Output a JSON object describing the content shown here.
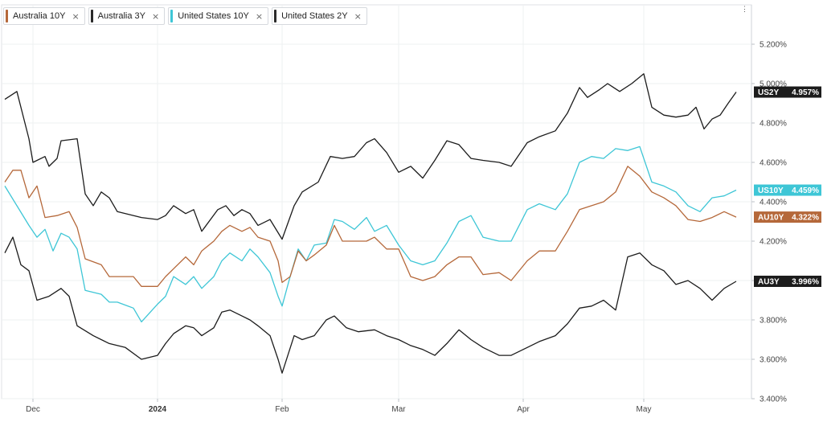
{
  "legend": [
    {
      "label": "Australia 10Y",
      "color": "#b5683a",
      "close": "×"
    },
    {
      "label": "Australia 3Y",
      "color": "#2a2a2a",
      "close": "×"
    },
    {
      "label": "United States 10Y",
      "color": "#3ec6d6",
      "close": "×"
    },
    {
      "label": "United States 2Y",
      "color": "#2a2a2a",
      "close": "×"
    }
  ],
  "chart_data": {
    "type": "line",
    "x_ticks": [
      "Dec",
      "2024",
      "Feb",
      "Mar",
      "Apr",
      "May"
    ],
    "y_ticks": [
      "5.200%",
      "5.000%",
      "4.800%",
      "4.600%",
      "4.400%",
      "4.200%",
      "4.000%",
      "3.800%",
      "3.600%",
      "3.400%"
    ],
    "ylim": [
      3.4,
      5.4
    ],
    "x_range": [
      "2023-11-24",
      "2024-05-24"
    ],
    "grid": true,
    "series": [
      {
        "name": "US2Y",
        "last": "4.957%",
        "color": "#1c1c1c",
        "tag_color": "#1c1c1c",
        "points": [
          [
            "2023-11-24",
            4.92
          ],
          [
            "2023-11-27",
            4.96
          ],
          [
            "2023-11-30",
            4.72
          ],
          [
            "2023-12-01",
            4.6
          ],
          [
            "2023-12-04",
            4.63
          ],
          [
            "2023-12-05",
            4.58
          ],
          [
            "2023-12-07",
            4.62
          ],
          [
            "2023-12-08",
            4.71
          ],
          [
            "2023-12-12",
            4.72
          ],
          [
            "2023-12-14",
            4.44
          ],
          [
            "2023-12-16",
            4.38
          ],
          [
            "2023-12-18",
            4.45
          ],
          [
            "2023-12-20",
            4.42
          ],
          [
            "2023-12-22",
            4.35
          ],
          [
            "2023-12-28",
            4.32
          ],
          [
            "2024-01-01",
            4.31
          ],
          [
            "2024-01-03",
            4.33
          ],
          [
            "2024-01-05",
            4.38
          ],
          [
            "2024-01-08",
            4.34
          ],
          [
            "2024-01-10",
            4.36
          ],
          [
            "2024-01-12",
            4.25
          ],
          [
            "2024-01-16",
            4.36
          ],
          [
            "2024-01-18",
            4.38
          ],
          [
            "2024-01-20",
            4.33
          ],
          [
            "2024-01-22",
            4.36
          ],
          [
            "2024-01-24",
            4.34
          ],
          [
            "2024-01-26",
            4.28
          ],
          [
            "2024-01-29",
            4.31
          ],
          [
            "2024-02-01",
            4.21
          ],
          [
            "2024-02-04",
            4.38
          ],
          [
            "2024-02-06",
            4.45
          ],
          [
            "2024-02-10",
            4.5
          ],
          [
            "2024-02-13",
            4.63
          ],
          [
            "2024-02-16",
            4.62
          ],
          [
            "2024-02-19",
            4.63
          ],
          [
            "2024-02-22",
            4.7
          ],
          [
            "2024-02-24",
            4.72
          ],
          [
            "2024-02-27",
            4.65
          ],
          [
            "2024-03-01",
            4.55
          ],
          [
            "2024-03-04",
            4.58
          ],
          [
            "2024-03-07",
            4.52
          ],
          [
            "2024-03-10",
            4.61
          ],
          [
            "2024-03-13",
            4.71
          ],
          [
            "2024-03-16",
            4.69
          ],
          [
            "2024-03-19",
            4.62
          ],
          [
            "2024-03-22",
            4.61
          ],
          [
            "2024-03-26",
            4.6
          ],
          [
            "2024-03-29",
            4.58
          ],
          [
            "2024-04-02",
            4.7
          ],
          [
            "2024-04-05",
            4.73
          ],
          [
            "2024-04-09",
            4.76
          ],
          [
            "2024-04-12",
            4.85
          ],
          [
            "2024-04-15",
            4.98
          ],
          [
            "2024-04-17",
            4.93
          ],
          [
            "2024-04-20",
            4.97
          ],
          [
            "2024-04-22",
            5.0
          ],
          [
            "2024-04-25",
            4.96
          ],
          [
            "2024-04-28",
            5.0
          ],
          [
            "2024-05-01",
            5.05
          ],
          [
            "2024-05-03",
            4.88
          ],
          [
            "2024-05-06",
            4.84
          ],
          [
            "2024-05-09",
            4.83
          ],
          [
            "2024-05-12",
            4.84
          ],
          [
            "2024-05-14",
            4.88
          ],
          [
            "2024-05-16",
            4.77
          ],
          [
            "2024-05-18",
            4.82
          ],
          [
            "2024-05-20",
            4.84
          ],
          [
            "2024-05-22",
            4.9
          ],
          [
            "2024-05-24",
            4.957
          ]
        ]
      },
      {
        "name": "US10Y",
        "last": "4.459%",
        "color": "#3ec6d6",
        "tag_color": "#3ec6d6",
        "points": [
          [
            "2023-11-24",
            4.48
          ],
          [
            "2023-11-27",
            4.38
          ],
          [
            "2023-11-30",
            4.28
          ],
          [
            "2023-12-02",
            4.22
          ],
          [
            "2023-12-04",
            4.26
          ],
          [
            "2023-12-06",
            4.15
          ],
          [
            "2023-12-08",
            4.24
          ],
          [
            "2023-12-10",
            4.22
          ],
          [
            "2023-12-12",
            4.16
          ],
          [
            "2023-12-14",
            3.95
          ],
          [
            "2023-12-18",
            3.93
          ],
          [
            "2023-12-20",
            3.89
          ],
          [
            "2023-12-22",
            3.89
          ],
          [
            "2023-12-26",
            3.86
          ],
          [
            "2023-12-28",
            3.79
          ],
          [
            "2024-01-01",
            3.88
          ],
          [
            "2024-01-03",
            3.92
          ],
          [
            "2024-01-05",
            4.02
          ],
          [
            "2024-01-08",
            3.98
          ],
          [
            "2024-01-10",
            4.02
          ],
          [
            "2024-01-12",
            3.96
          ],
          [
            "2024-01-15",
            4.02
          ],
          [
            "2024-01-17",
            4.1
          ],
          [
            "2024-01-19",
            4.14
          ],
          [
            "2024-01-22",
            4.1
          ],
          [
            "2024-01-24",
            4.16
          ],
          [
            "2024-01-26",
            4.12
          ],
          [
            "2024-01-29",
            4.04
          ],
          [
            "2024-01-31",
            3.92
          ],
          [
            "2024-02-01",
            3.87
          ],
          [
            "2024-02-03",
            4.02
          ],
          [
            "2024-02-05",
            4.16
          ],
          [
            "2024-02-07",
            4.1
          ],
          [
            "2024-02-09",
            4.18
          ],
          [
            "2024-02-12",
            4.19
          ],
          [
            "2024-02-14",
            4.31
          ],
          [
            "2024-02-16",
            4.3
          ],
          [
            "2024-02-19",
            4.26
          ],
          [
            "2024-02-22",
            4.32
          ],
          [
            "2024-02-24",
            4.25
          ],
          [
            "2024-02-27",
            4.28
          ],
          [
            "2024-03-01",
            4.18
          ],
          [
            "2024-03-04",
            4.1
          ],
          [
            "2024-03-07",
            4.08
          ],
          [
            "2024-03-10",
            4.1
          ],
          [
            "2024-03-13",
            4.19
          ],
          [
            "2024-03-16",
            4.3
          ],
          [
            "2024-03-19",
            4.33
          ],
          [
            "2024-03-22",
            4.22
          ],
          [
            "2024-03-26",
            4.2
          ],
          [
            "2024-03-29",
            4.2
          ],
          [
            "2024-04-02",
            4.36
          ],
          [
            "2024-04-05",
            4.39
          ],
          [
            "2024-04-09",
            4.36
          ],
          [
            "2024-04-12",
            4.44
          ],
          [
            "2024-04-15",
            4.6
          ],
          [
            "2024-04-18",
            4.63
          ],
          [
            "2024-04-21",
            4.62
          ],
          [
            "2024-04-24",
            4.67
          ],
          [
            "2024-04-27",
            4.66
          ],
          [
            "2024-04-30",
            4.68
          ],
          [
            "2024-05-03",
            4.5
          ],
          [
            "2024-05-06",
            4.48
          ],
          [
            "2024-05-09",
            4.45
          ],
          [
            "2024-05-12",
            4.38
          ],
          [
            "2024-05-15",
            4.35
          ],
          [
            "2024-05-18",
            4.42
          ],
          [
            "2024-05-21",
            4.43
          ],
          [
            "2024-05-24",
            4.459
          ]
        ]
      },
      {
        "name": "AU10Y",
        "last": "4.322%",
        "color": "#b5683a",
        "tag_color": "#b5683a",
        "points": [
          [
            "2023-11-24",
            4.5
          ],
          [
            "2023-11-26",
            4.56
          ],
          [
            "2023-11-28",
            4.56
          ],
          [
            "2023-11-30",
            4.42
          ],
          [
            "2023-12-02",
            4.48
          ],
          [
            "2023-12-04",
            4.32
          ],
          [
            "2023-12-07",
            4.33
          ],
          [
            "2023-12-10",
            4.35
          ],
          [
            "2023-12-12",
            4.27
          ],
          [
            "2023-12-14",
            4.11
          ],
          [
            "2023-12-18",
            4.08
          ],
          [
            "2023-12-20",
            4.02
          ],
          [
            "2023-12-26",
            4.02
          ],
          [
            "2023-12-28",
            3.97
          ],
          [
            "2024-01-01",
            3.97
          ],
          [
            "2024-01-03",
            4.02
          ],
          [
            "2024-01-05",
            4.06
          ],
          [
            "2024-01-08",
            4.12
          ],
          [
            "2024-01-10",
            4.08
          ],
          [
            "2024-01-12",
            4.15
          ],
          [
            "2024-01-15",
            4.2
          ],
          [
            "2024-01-17",
            4.25
          ],
          [
            "2024-01-19",
            4.28
          ],
          [
            "2024-01-22",
            4.25
          ],
          [
            "2024-01-24",
            4.27
          ],
          [
            "2024-01-26",
            4.22
          ],
          [
            "2024-01-29",
            4.2
          ],
          [
            "2024-01-31",
            4.1
          ],
          [
            "2024-02-01",
            3.99
          ],
          [
            "2024-02-03",
            4.02
          ],
          [
            "2024-02-05",
            4.15
          ],
          [
            "2024-02-07",
            4.1
          ],
          [
            "2024-02-09",
            4.13
          ],
          [
            "2024-02-12",
            4.18
          ],
          [
            "2024-02-14",
            4.28
          ],
          [
            "2024-02-16",
            4.2
          ],
          [
            "2024-02-19",
            4.2
          ],
          [
            "2024-02-22",
            4.2
          ],
          [
            "2024-02-24",
            4.22
          ],
          [
            "2024-02-27",
            4.16
          ],
          [
            "2024-03-01",
            4.16
          ],
          [
            "2024-03-04",
            4.02
          ],
          [
            "2024-03-07",
            4.0
          ],
          [
            "2024-03-10",
            4.02
          ],
          [
            "2024-03-13",
            4.08
          ],
          [
            "2024-03-16",
            4.12
          ],
          [
            "2024-03-19",
            4.12
          ],
          [
            "2024-03-22",
            4.03
          ],
          [
            "2024-03-26",
            4.04
          ],
          [
            "2024-03-29",
            4.0
          ],
          [
            "2024-04-02",
            4.1
          ],
          [
            "2024-04-05",
            4.15
          ],
          [
            "2024-04-09",
            4.15
          ],
          [
            "2024-04-12",
            4.25
          ],
          [
            "2024-04-15",
            4.36
          ],
          [
            "2024-04-18",
            4.38
          ],
          [
            "2024-04-21",
            4.4
          ],
          [
            "2024-04-24",
            4.45
          ],
          [
            "2024-04-27",
            4.58
          ],
          [
            "2024-04-30",
            4.53
          ],
          [
            "2024-05-03",
            4.45
          ],
          [
            "2024-05-06",
            4.42
          ],
          [
            "2024-05-09",
            4.38
          ],
          [
            "2024-05-12",
            4.31
          ],
          [
            "2024-05-15",
            4.3
          ],
          [
            "2024-05-18",
            4.32
          ],
          [
            "2024-05-21",
            4.35
          ],
          [
            "2024-05-24",
            4.322
          ]
        ]
      },
      {
        "name": "AU3Y",
        "last": "3.996%",
        "color": "#1c1c1c",
        "tag_color": "#1c1c1c",
        "points": [
          [
            "2023-11-24",
            4.14
          ],
          [
            "2023-11-26",
            4.22
          ],
          [
            "2023-11-28",
            4.08
          ],
          [
            "2023-11-30",
            4.05
          ],
          [
            "2023-12-02",
            3.9
          ],
          [
            "2023-12-05",
            3.92
          ],
          [
            "2023-12-08",
            3.96
          ],
          [
            "2023-12-10",
            3.92
          ],
          [
            "2023-12-12",
            3.77
          ],
          [
            "2023-12-16",
            3.72
          ],
          [
            "2023-12-20",
            3.68
          ],
          [
            "2023-12-24",
            3.66
          ],
          [
            "2023-12-28",
            3.6
          ],
          [
            "2024-01-01",
            3.62
          ],
          [
            "2024-01-03",
            3.68
          ],
          [
            "2024-01-05",
            3.73
          ],
          [
            "2024-01-08",
            3.77
          ],
          [
            "2024-01-10",
            3.76
          ],
          [
            "2024-01-12",
            3.72
          ],
          [
            "2024-01-15",
            3.76
          ],
          [
            "2024-01-17",
            3.84
          ],
          [
            "2024-01-19",
            3.85
          ],
          [
            "2024-01-22",
            3.82
          ],
          [
            "2024-01-24",
            3.8
          ],
          [
            "2024-01-26",
            3.77
          ],
          [
            "2024-01-29",
            3.72
          ],
          [
            "2024-01-31",
            3.6
          ],
          [
            "2024-02-01",
            3.53
          ],
          [
            "2024-02-04",
            3.72
          ],
          [
            "2024-02-06",
            3.7
          ],
          [
            "2024-02-09",
            3.72
          ],
          [
            "2024-02-12",
            3.8
          ],
          [
            "2024-02-14",
            3.82
          ],
          [
            "2024-02-17",
            3.76
          ],
          [
            "2024-02-20",
            3.74
          ],
          [
            "2024-02-24",
            3.75
          ],
          [
            "2024-02-27",
            3.72
          ],
          [
            "2024-03-01",
            3.7
          ],
          [
            "2024-03-04",
            3.67
          ],
          [
            "2024-03-07",
            3.65
          ],
          [
            "2024-03-10",
            3.62
          ],
          [
            "2024-03-13",
            3.68
          ],
          [
            "2024-03-16",
            3.75
          ],
          [
            "2024-03-19",
            3.7
          ],
          [
            "2024-03-22",
            3.66
          ],
          [
            "2024-03-26",
            3.62
          ],
          [
            "2024-03-29",
            3.62
          ],
          [
            "2024-04-02",
            3.66
          ],
          [
            "2024-04-05",
            3.69
          ],
          [
            "2024-04-09",
            3.72
          ],
          [
            "2024-04-12",
            3.78
          ],
          [
            "2024-04-15",
            3.86
          ],
          [
            "2024-04-18",
            3.87
          ],
          [
            "2024-04-21",
            3.9
          ],
          [
            "2024-04-24",
            3.85
          ],
          [
            "2024-04-27",
            4.12
          ],
          [
            "2024-04-30",
            4.14
          ],
          [
            "2024-05-03",
            4.08
          ],
          [
            "2024-05-06",
            4.05
          ],
          [
            "2024-05-09",
            3.98
          ],
          [
            "2024-05-12",
            4.0
          ],
          [
            "2024-05-15",
            3.96
          ],
          [
            "2024-05-18",
            3.9
          ],
          [
            "2024-05-21",
            3.96
          ],
          [
            "2024-05-24",
            3.996
          ]
        ]
      }
    ]
  }
}
